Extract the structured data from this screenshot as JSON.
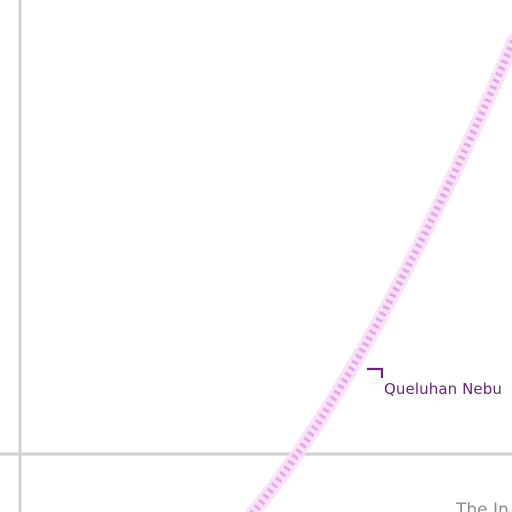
{
  "map": {
    "colors": {
      "background": "#ffffff",
      "grid_line": "#cfcfcf",
      "route_dash": "#e2a8f0",
      "route_glow": "#f9dcf3",
      "marker": "#6b2277",
      "region_text": "#8a8a8a"
    },
    "labels": {
      "nebula": "Queluhan Nebu",
      "region": "The In"
    }
  }
}
